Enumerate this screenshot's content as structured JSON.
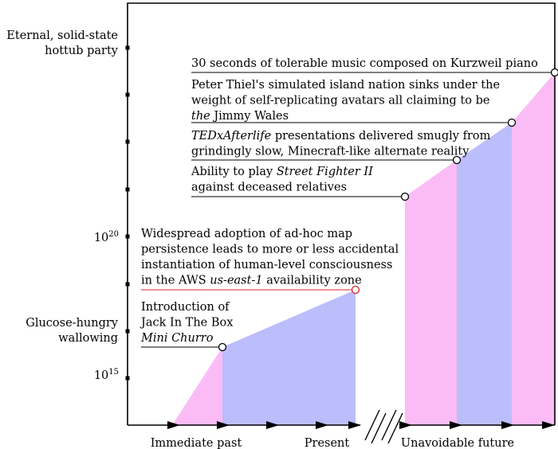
{
  "chart_data": {
    "type": "area",
    "title": "",
    "y_axis": {
      "tick_labels": [
        {
          "base": "10",
          "exp": "20"
        },
        {
          "base": "10",
          "exp": "15"
        }
      ],
      "tick_count": 9,
      "left_labels": [
        {
          "lines": [
            "Eternal, solid-state",
            "hottub party"
          ]
        },
        {
          "lines": [
            "Glucose-hungry",
            "wallowing"
          ]
        }
      ]
    },
    "x_axis": {
      "labels": [
        "Immediate past",
        "Present",
        "Unavoidable future"
      ],
      "break": true
    },
    "events": [
      {
        "lines": [
          [
            "Introduction of"
          ],
          [
            "Jack In The Box"
          ],
          [
            {
              "t": "Mini Churro",
              "i": true
            }
          ]
        ]
      },
      {
        "lines": [
          [
            "Widespread adoption of ad-hoc map"
          ],
          [
            "persistence leads to more or less accidental"
          ],
          [
            "instantiation of human-level consciousness"
          ],
          [
            "in the AWS ",
            {
              "t": "us-east-1",
              "i": true
            },
            " availability zone"
          ]
        ],
        "highlight": true
      },
      {
        "lines": [
          [
            "Ability to play ",
            {
              "t": "Street Fighter II",
              "i": true
            }
          ],
          [
            "against deceased relatives"
          ]
        ]
      },
      {
        "lines": [
          [
            {
              "t": "TEDxAfterlife",
              "i": true
            },
            " presentations delivered smugly from"
          ],
          [
            "grindingly slow, Minecraft-like alternate reality"
          ]
        ]
      },
      {
        "lines": [
          [
            "Peter Thiel's simulated island nation sinks under the"
          ],
          [
            "weight of self-replicating avatars all claiming to be"
          ],
          [
            {
              "t": "the",
              "i": true
            },
            " Jimmy Wales"
          ]
        ]
      },
      {
        "lines": [
          [
            "30 seconds of tolerable music composed on Kurzweil piano"
          ]
        ]
      }
    ],
    "colors": {
      "pink": "#fbbcf5",
      "blue": "#bcbdfb",
      "highlight": "#e0202a",
      "ink": "#000000"
    }
  }
}
